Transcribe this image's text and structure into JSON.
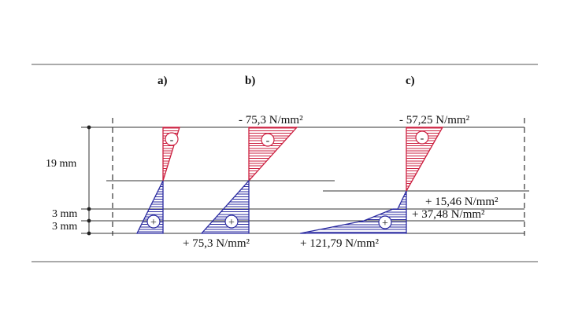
{
  "colors": {
    "compression": "#cc2040",
    "tension": "#2a2aa0",
    "line": "#333333"
  },
  "cases": [
    {
      "id": "a",
      "label": "a)"
    },
    {
      "id": "b",
      "label": "b)"
    },
    {
      "id": "c",
      "label": "c)"
    }
  ],
  "signs": {
    "minus": "-",
    "plus": "+"
  },
  "dimensions": {
    "top_layer": "19 mm",
    "middle_layer": "3 mm",
    "bottom_layer": "3 mm"
  },
  "stresses": {
    "b_top": "- 75,3 N/mm²",
    "b_bottom": "+ 75,3 N/mm²",
    "c_top": "- 57,25 N/mm²",
    "c_interface_1": "+ 15,46 N/mm²",
    "c_interface_2": "+ 37,48 N/mm²",
    "c_bottom": "+ 121,79 N/mm²"
  }
}
